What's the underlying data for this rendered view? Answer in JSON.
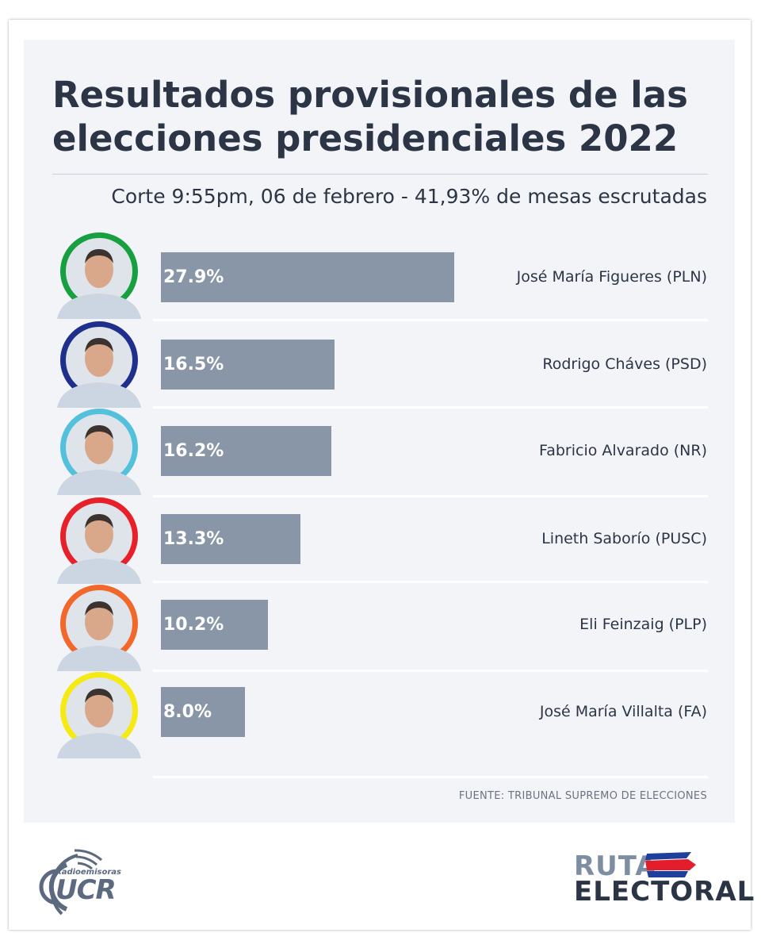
{
  "chart_data": {
    "type": "bar",
    "orientation": "horizontal",
    "title": "Resultados provisionales de las elecciones presidenciales 2022",
    "subtitle": "Corte 9:55pm, 06 de febrero - 41,93% de mesas escrutadas",
    "categories": [
      "José María Figueres (PLN)",
      "Rodrigo Cháves (PSD)",
      "Fabricio Alvarado (NR)",
      "Lineth Saborío (PUSC)",
      "Eli Feinzaig (PLP)",
      "José María Villalta (FA)"
    ],
    "values": [
      27.9,
      16.5,
      16.2,
      13.3,
      10.2,
      8.0
    ],
    "value_labels": [
      "27.9%",
      "16.5%",
      "16.2%",
      "13.3%",
      "10.2%",
      "8.0%"
    ],
    "avatar_ring_colors": [
      "#18a040",
      "#1f2f8c",
      "#53c0dc",
      "#e8202a",
      "#f2682a",
      "#f5ea14"
    ],
    "bar_color": "#8896a7",
    "grid": false,
    "legend": "none"
  },
  "source": "FUENTE: TRIBUNAL SUPREMO DE ELECCIONES",
  "logos": {
    "ucr_small": "Radioemisoras",
    "ucr_big": "UCR",
    "ruta_line1": "RUTA",
    "ruta_line2": "ELECTORAL"
  },
  "colors": {
    "title": "#2c3545",
    "panel_bg": "#f3f4f8",
    "logo_gray": "#7d8ea2"
  }
}
